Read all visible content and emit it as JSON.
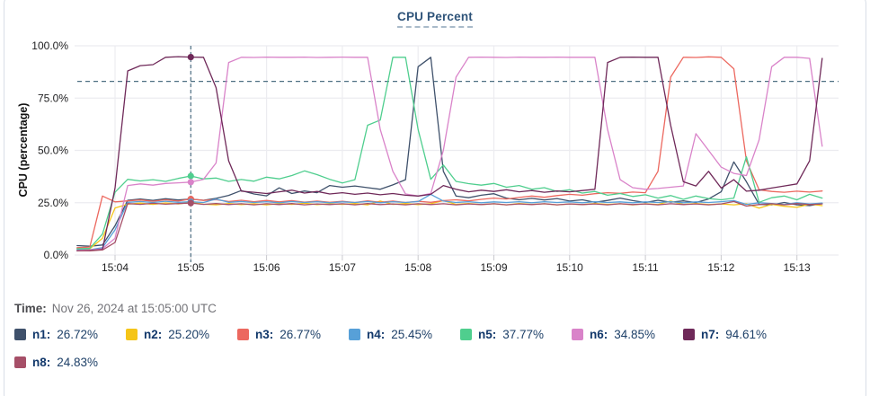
{
  "header": {
    "title": "CPU Percent"
  },
  "tooltip": {
    "label": "Time:",
    "value": "Nov 26, 2024 at 15:05:00 UTC"
  },
  "colors": {
    "grid": "#ececf0",
    "tick": "#c9c9ce",
    "axis_text": "#202022",
    "dashed_line": "#4e7082",
    "card_border": "#d9dee7",
    "title_text": "#2e5379"
  },
  "chart_data": {
    "type": "line",
    "title": "CPU Percent",
    "xlabel": "",
    "ylabel": "CPU (percentage)",
    "ylim": [
      0,
      100
    ],
    "y_ticks": [
      "0.0%",
      "25.0%",
      "50.0%",
      "75.0%",
      "100.0%"
    ],
    "y_tick_values": [
      0,
      25,
      50,
      75,
      100
    ],
    "x_tick_labels": [
      "15:04",
      "15:05",
      "15:06",
      "15:07",
      "15:08",
      "15:09",
      "15:10",
      "15:11",
      "15:12",
      "15:13"
    ],
    "x_tick_seconds": [
      240,
      300,
      360,
      420,
      480,
      540,
      600,
      660,
      720,
      780
    ],
    "grid": true,
    "legend_position": "bottom",
    "threshold_percent": 83,
    "crosshair_time": "15:05:00",
    "crosshair_seconds": 300,
    "sample_start_seconds": 210,
    "sample_interval_seconds": 10,
    "series": [
      {
        "name": "n1",
        "color": "#3f516b",
        "cursor_value": "26.72%",
        "values": [
          4.5,
          4.2,
          4.8,
          14,
          26.2,
          26.8,
          26.1,
          26.9,
          26.3,
          26.72,
          26.2,
          27.1,
          28.5,
          30.8,
          29.2,
          28.3,
          32.1,
          29.4,
          30.6,
          29.8,
          33.2,
          32.4,
          33.0,
          32.2,
          31.4,
          33.5,
          36.0,
          90.0,
          94.5,
          40.0,
          28.2,
          27.4,
          28.6,
          29.3,
          27.2,
          26.4,
          27.1,
          26.3,
          27.0,
          25.8,
          26.4,
          25.2,
          26.1,
          27.2,
          26.0,
          25.1,
          26.2,
          25.3,
          25.9,
          25.1,
          26.8,
          30.2,
          44.5,
          35.0,
          24.2,
          24.0,
          25.1,
          24.0,
          23.6,
          24.6
        ]
      },
      {
        "name": "n2",
        "color": "#f5c518",
        "cursor_value": "25.20%",
        "values": [
          3.2,
          3.0,
          8.0,
          22.5,
          24.3,
          24.8,
          24.2,
          24.9,
          24.4,
          25.2,
          24.3,
          24.0,
          24.6,
          24.1,
          24.5,
          24.0,
          24.6,
          24.2,
          24.7,
          24.1,
          24.5,
          24.2,
          24.6,
          24.0,
          25.8,
          24.2,
          24.6,
          24.1,
          24.5,
          26.0,
          24.2,
          24.6,
          24.1,
          24.5,
          24.0,
          24.6,
          24.2,
          24.5,
          24.0,
          24.4,
          24.1,
          24.6,
          24.2,
          24.5,
          24.0,
          24.5,
          24.1,
          25.8,
          24.2,
          24.6,
          24.1,
          24.4,
          24.0,
          24.5,
          22.4,
          24.2,
          23.3,
          22.8,
          24.3,
          23.6
        ]
      },
      {
        "name": "n3",
        "color": "#ec685f",
        "cursor_value": "26.77%",
        "values": [
          3.5,
          3.8,
          28.2,
          25.4,
          25.9,
          26.3,
          25.7,
          26.4,
          25.8,
          26.77,
          26.1,
          26.5,
          25.6,
          26.2,
          25.5,
          26.1,
          25.4,
          26.0,
          25.3,
          25.8,
          25.2,
          25.7,
          25.1,
          25.9,
          25.2,
          25.8,
          25.1,
          25.7,
          25.2,
          26.0,
          26.4,
          25.9,
          26.6,
          27.2,
          26.8,
          27.5,
          28.2,
          27.6,
          28.4,
          29.0,
          28.6,
          29.3,
          29.8,
          29.5,
          30.1,
          29.8,
          40.0,
          85.0,
          94.5,
          94.4,
          94.7,
          94.5,
          89.0,
          45.0,
          31.2,
          30.4,
          30.0,
          30.5,
          30.1,
          30.6
        ]
      },
      {
        "name": "n4",
        "color": "#57a0d8",
        "cursor_value": "25.45%",
        "values": [
          2.6,
          2.5,
          3.5,
          12.0,
          25.2,
          25.6,
          25.1,
          25.7,
          25.2,
          25.45,
          25.1,
          26.8,
          25.2,
          25.6,
          25.1,
          25.5,
          25.0,
          25.6,
          25.1,
          25.5,
          25.0,
          25.4,
          25.1,
          25.6,
          25.0,
          25.5,
          25.1,
          25.6,
          29.0,
          25.8,
          25.1,
          25.5,
          25.0,
          25.4,
          25.1,
          25.5,
          25.0,
          25.5,
          25.1,
          25.4,
          25.0,
          25.5,
          25.1,
          25.4,
          25.0,
          25.4,
          25.1,
          25.5,
          25.0,
          25.4,
          25.1,
          25.5,
          26.0,
          24.2,
          25.0,
          24.6,
          24.1,
          25.0,
          24.4,
          24.8
        ]
      },
      {
        "name": "n5",
        "color": "#4fce8e",
        "cursor_value": "37.77%",
        "values": [
          3.0,
          3.2,
          10.0,
          30.0,
          36.2,
          35.4,
          36.0,
          35.2,
          36.6,
          37.77,
          36.4,
          36.8,
          35.2,
          36.1,
          35.3,
          37.2,
          36.4,
          38.0,
          40.2,
          38.4,
          36.2,
          34.4,
          36.0,
          62.0,
          64.5,
          94.5,
          94.5,
          60.0,
          36.2,
          43.0,
          35.2,
          34.1,
          33.4,
          34.2,
          32.4,
          33.2,
          31.4,
          32.2,
          30.4,
          31.2,
          29.6,
          30.4,
          28.6,
          29.4,
          28.0,
          28.8,
          27.2,
          28.4,
          26.6,
          28.2,
          27.0,
          26.4,
          27.2,
          47.0,
          25.2,
          27.4,
          28.2,
          26.4,
          29.0,
          27.2
        ]
      },
      {
        "name": "n6",
        "color": "#d983c9",
        "cursor_value": "34.85%",
        "values": [
          2.2,
          2.4,
          3.0,
          8.0,
          33.2,
          34.0,
          33.4,
          34.2,
          34.5,
          34.85,
          36.2,
          44.0,
          92.0,
          94.5,
          94.4,
          94.6,
          94.5,
          94.5,
          94.6,
          94.4,
          94.5,
          94.6,
          94.5,
          94.5,
          60.0,
          40.0,
          29.2,
          28.2,
          29.4,
          50.0,
          85.0,
          94.5,
          94.6,
          94.5,
          94.4,
          94.6,
          94.5,
          94.5,
          94.6,
          94.5,
          94.5,
          94.5,
          60.0,
          36.0,
          32.2,
          31.4,
          31.8,
          32.4,
          33.0,
          58.0,
          50.0,
          42.0,
          39.0,
          38.0,
          55.0,
          90.0,
          94.5,
          94.5,
          94.0,
          52.0
        ]
      },
      {
        "name": "n7",
        "color": "#6f2959",
        "cursor_value": "94.61%",
        "values": [
          2.0,
          2.2,
          2.6,
          32.0,
          88.0,
          90.5,
          91.0,
          94.5,
          94.8,
          94.61,
          94.5,
          80.0,
          45.0,
          30.5,
          30.0,
          29.4,
          30.2,
          31.0,
          29.6,
          30.4,
          29.2,
          29.8,
          29.0,
          29.6,
          28.8,
          29.4,
          28.6,
          28.2,
          29.0,
          33.2,
          31.4,
          30.2,
          31.0,
          30.4,
          31.2,
          30.2,
          30.8,
          30.0,
          30.6,
          30.2,
          30.8,
          31.4,
          92.0,
          94.5,
          94.6,
          94.5,
          94.5,
          62.0,
          35.0,
          33.0,
          40.0,
          32.0,
          36.0,
          30.5,
          31.0,
          32.0,
          33.0,
          34.0,
          45.0,
          94.0
        ]
      },
      {
        "name": "n8",
        "color": "#a64f68",
        "cursor_value": "24.83%",
        "values": [
          2.1,
          2.0,
          2.4,
          6.0,
          24.6,
          24.2,
          24.7,
          24.3,
          24.6,
          24.83,
          24.2,
          24.6,
          24.1,
          24.5,
          24.0,
          24.5,
          24.1,
          24.6,
          24.0,
          24.4,
          24.1,
          24.5,
          24.0,
          24.6,
          24.1,
          24.4,
          24.0,
          24.5,
          24.1,
          24.5,
          24.0,
          24.4,
          24.1,
          24.5,
          24.0,
          24.4,
          24.1,
          24.5,
          24.0,
          24.4,
          24.1,
          24.4,
          24.0,
          24.5,
          24.1,
          24.4,
          24.0,
          24.5,
          24.1,
          24.4,
          24.0,
          24.4,
          25.6,
          23.4,
          24.1,
          24.5,
          24.0,
          24.6,
          24.1,
          24.4
        ]
      }
    ]
  }
}
